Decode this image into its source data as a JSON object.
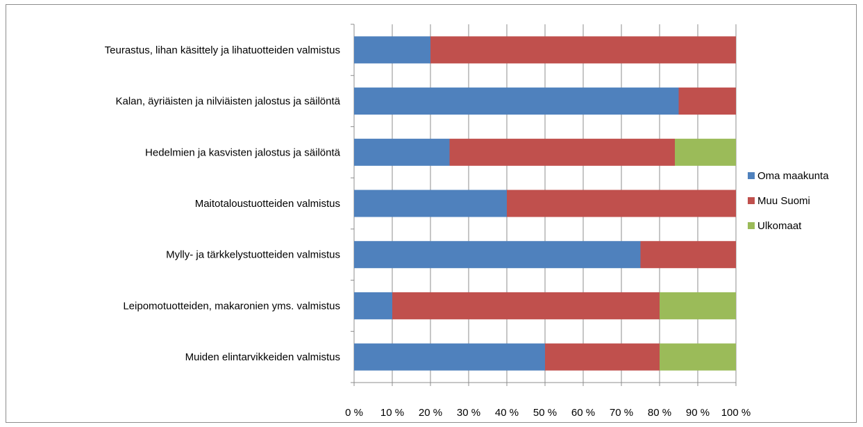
{
  "chart_data": {
    "type": "bar",
    "orientation": "horizontal",
    "stacked": "percent",
    "categories": [
      "Teurastus, lihan käsittely ja lihatuotteiden valmistus",
      "Kalan, äyriäisten ja nilviäisten jalostus ja säilöntä",
      "Hedelmien ja kasvisten jalostus ja säilöntä",
      "Maitotaloustuotteiden valmistus",
      "Mylly- ja tärkkelystuotteiden valmistus",
      "Leipomotuotteiden, makaronien yms. valmistus",
      "Muiden elintarvikkeiden valmistus"
    ],
    "series": [
      {
        "name": "Oma maakunta",
        "color": "#4F81BD",
        "values": [
          20,
          85,
          25,
          40,
          75,
          10,
          50
        ]
      },
      {
        "name": "Muu Suomi",
        "color": "#C0504D",
        "values": [
          80,
          15,
          59,
          60,
          25,
          70,
          30
        ]
      },
      {
        "name": "Ulkomaat",
        "color": "#9BBB59",
        "values": [
          0,
          0,
          16,
          0,
          0,
          20,
          20
        ]
      }
    ],
    "xlim": [
      0,
      100
    ],
    "xticks": [
      "0 %",
      "10 %",
      "20 %",
      "30 %",
      "40 %",
      "50 %",
      "60 %",
      "70 %",
      "80 %",
      "90 %",
      "100 %"
    ],
    "grid": true,
    "legend_position": "right",
    "title": "",
    "xlabel": "",
    "ylabel": ""
  }
}
